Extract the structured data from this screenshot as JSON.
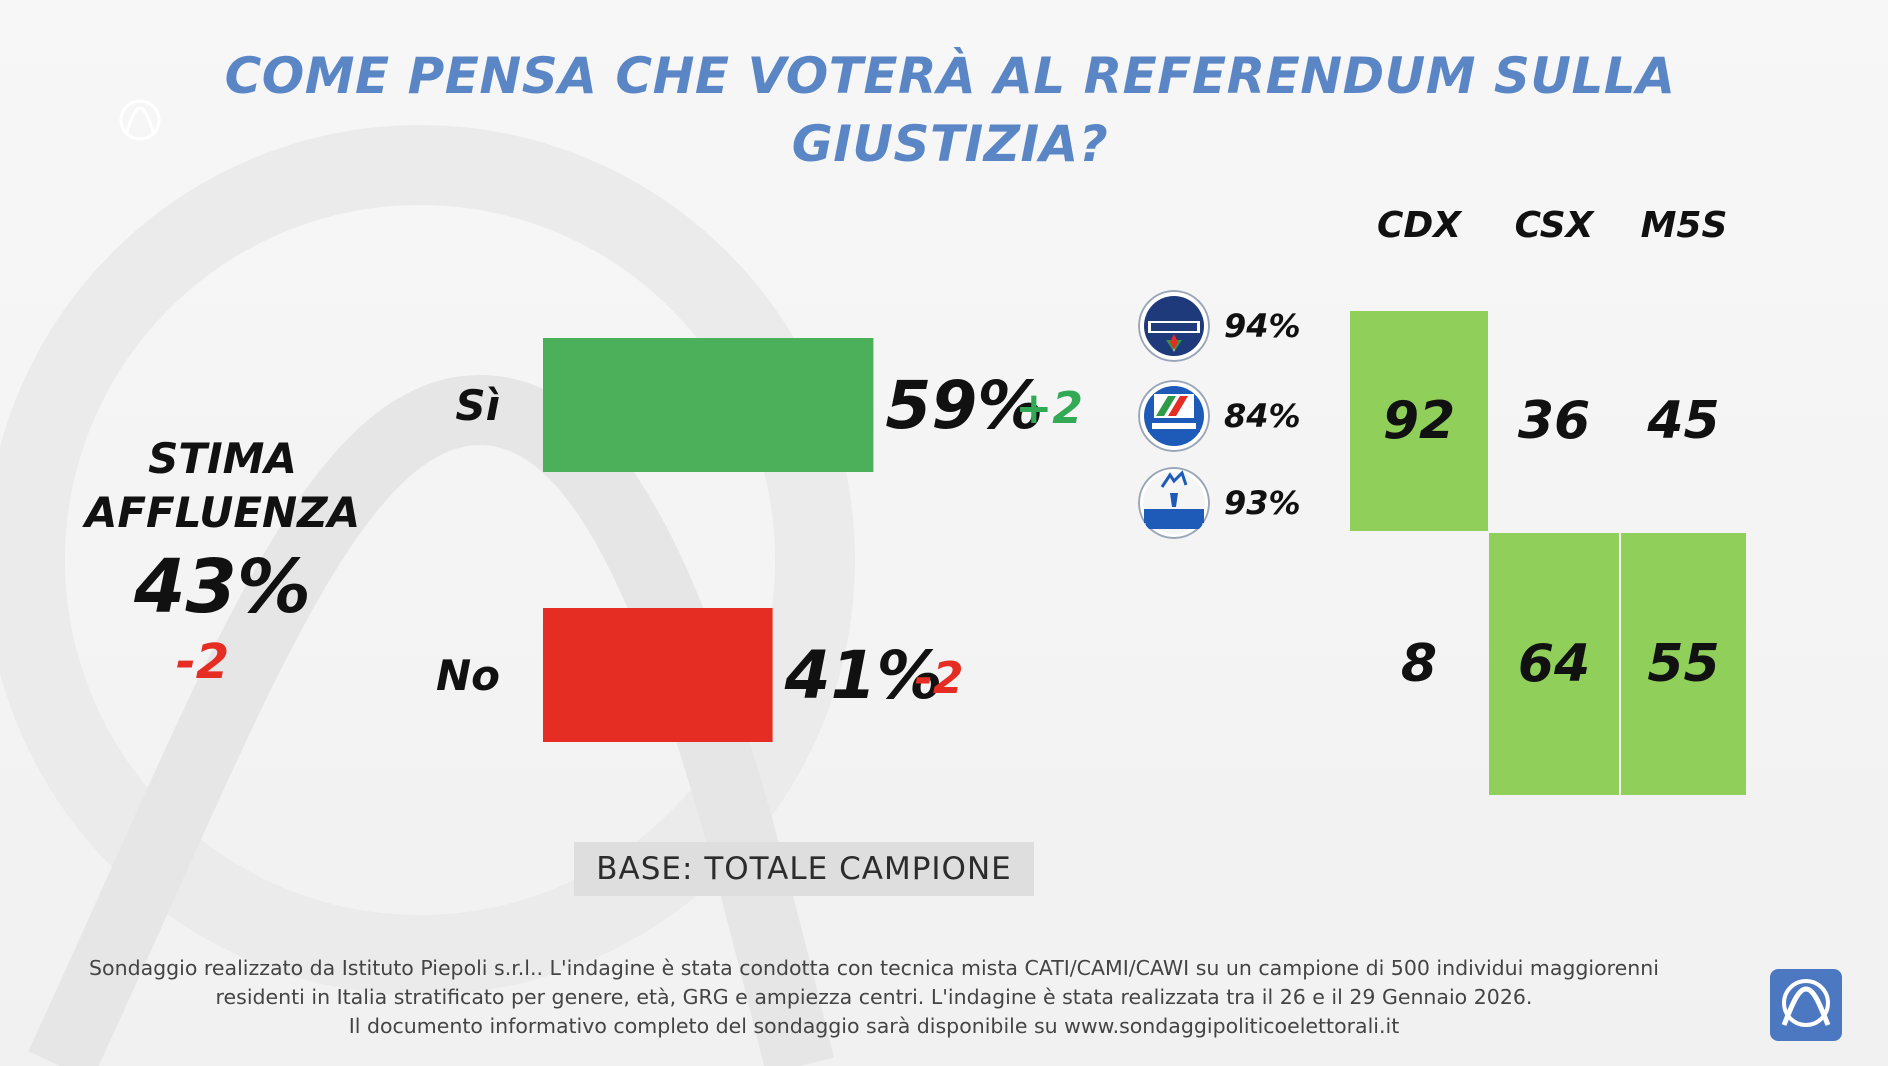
{
  "title": {
    "line1": "COME PENSA CHE VOTERÀ AL REFERENDUM SULLA",
    "line2": "GIUSTIZIA?"
  },
  "turnout": {
    "label_line1": "STIMA",
    "label_line2": "AFFLUENZA",
    "value": "43%",
    "delta": "-2"
  },
  "chart_data": {
    "type": "bar",
    "orientation": "horizontal",
    "categories": [
      "Sì",
      "No"
    ],
    "values": [
      59,
      41
    ],
    "value_labels": [
      "59%",
      "41%"
    ],
    "deltas": [
      "+2",
      "-2"
    ],
    "colors": [
      "#4caf5a",
      "#e52d23"
    ],
    "delta_colors": [
      "#32a955",
      "#e52d23"
    ],
    "xlim": [
      0,
      100
    ]
  },
  "coalitions": {
    "headers": [
      "CDX",
      "CSX",
      "M5S"
    ],
    "si_values": [
      "92",
      "36",
      "45"
    ],
    "no_values": [
      "8",
      "64",
      "55"
    ],
    "highlight_color": "#8fcf5a"
  },
  "parties": [
    {
      "icon": "fratelli-ditalia-logo-icon",
      "pct": "94%"
    },
    {
      "icon": "forza-italia-logo-icon",
      "pct": "84%"
    },
    {
      "icon": "lega-logo-icon",
      "pct": "93%"
    }
  ],
  "base_label": "BASE: TOTALE CAMPIONE",
  "footnote": {
    "line1": "Sondaggio realizzato da Istituto Piepoli s.r.l.. L'indagine è stata condotta con tecnica mista CATI/CAMI/CAWI su un campione di 500 individui maggiorenni",
    "line2": "residenti in Italia stratificato per genere, età, GRG e ampiezza centri. L'indagine è stata realizzata tra il 26 e il 29 Gennaio 2026.",
    "line3": "Il documento informativo completo del sondaggio sarà disponibile su www.sondaggipoliticoelettorali.it"
  }
}
